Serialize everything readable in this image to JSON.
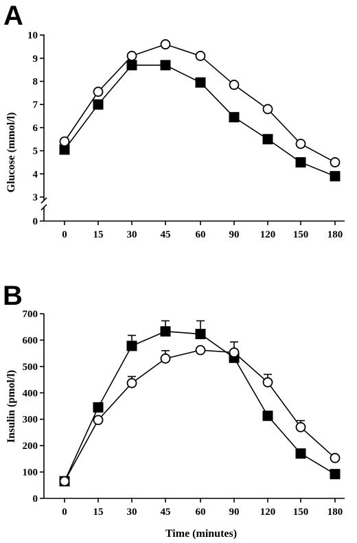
{
  "chart_data": [
    {
      "panel": "A",
      "type": "line",
      "title": "",
      "xlabel": "",
      "ylabel": "Glucose (mmol/l)",
      "categories": [
        "0",
        "15",
        "30",
        "45",
        "60",
        "90",
        "120",
        "150",
        "180"
      ],
      "yticks": [
        0,
        3,
        4,
        5,
        6,
        7,
        8,
        9,
        10
      ],
      "ylim": [
        0,
        10
      ],
      "axis_break": "between 0 and 3",
      "grid": false,
      "legend": "none",
      "series": [
        {
          "marker": "open-circle",
          "values": [
            5.4,
            7.55,
            9.1,
            9.6,
            9.1,
            7.85,
            6.8,
            5.3,
            4.5
          ]
        },
        {
          "marker": "filled-square",
          "values": [
            5.05,
            7.0,
            8.7,
            8.7,
            7.95,
            6.45,
            5.5,
            4.5,
            3.9
          ]
        }
      ]
    },
    {
      "panel": "B",
      "type": "line",
      "title": "",
      "xlabel": "Time (minutes)",
      "ylabel": "Insulin (pmol/l)",
      "categories": [
        "0",
        "15",
        "30",
        "45",
        "60",
        "90",
        "120",
        "150",
        "180"
      ],
      "yticks": [
        0,
        100,
        200,
        300,
        400,
        500,
        600,
        700
      ],
      "ylim": [
        0,
        700
      ],
      "grid": false,
      "legend": "none",
      "series": [
        {
          "marker": "open-circle",
          "values": [
            65,
            297,
            437,
            530,
            562,
            553,
            440,
            270,
            153
          ],
          "error": [
            0,
            0,
            25,
            30,
            0,
            40,
            30,
            25,
            0
          ]
        },
        {
          "marker": "filled-square",
          "values": [
            65,
            345,
            578,
            633,
            623,
            533,
            313,
            170,
            92
          ],
          "error": [
            0,
            0,
            40,
            40,
            50,
            0,
            0,
            0,
            0
          ]
        }
      ]
    }
  ]
}
